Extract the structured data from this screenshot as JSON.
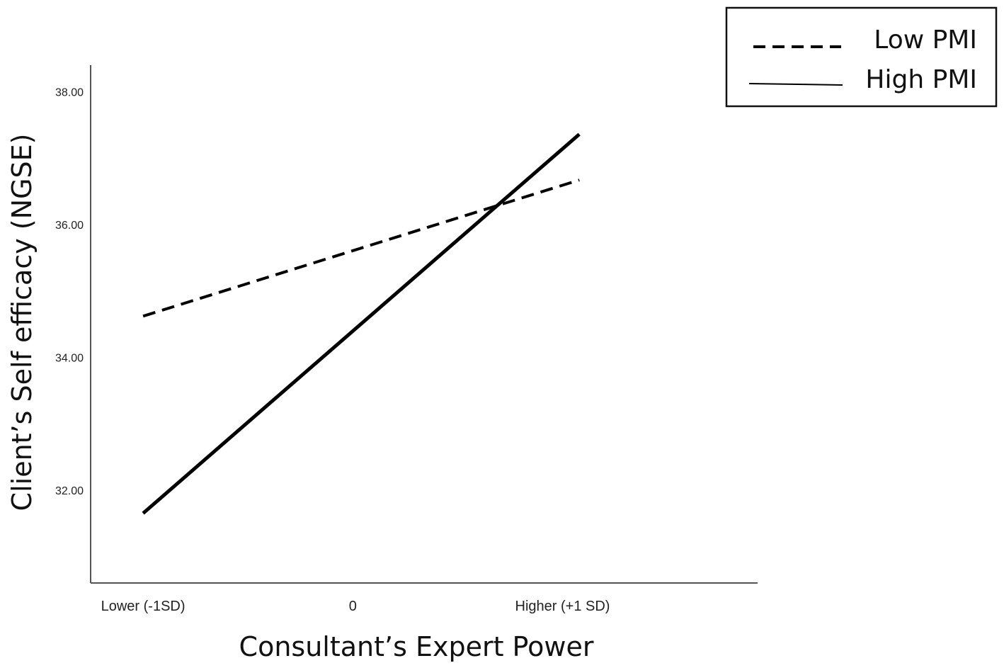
{
  "chart_data": {
    "type": "line",
    "xlabel": "Consultant’s Expert Power",
    "ylabel": "Client’s Self efficacy (NGSE)",
    "categories": [
      "Lower (-1SD)",
      "0",
      "Higher (+1 SD)"
    ],
    "x_ticks": [
      -1,
      0,
      1
    ],
    "yticks": [
      "32.00",
      "34.00",
      "36.00",
      "38.00"
    ],
    "ytick_values": [
      32,
      34,
      36,
      38
    ],
    "ylim": [
      30.6,
      38.4
    ],
    "xlim": [
      -1.25,
      1.93
    ],
    "legend_position": "top-right",
    "grid": false,
    "series": [
      {
        "name": "Low PMI",
        "style": "dashed",
        "color": "#000000",
        "x": [
          -1,
          1.08
        ],
        "values": [
          34.62,
          36.67
        ]
      },
      {
        "name": "High PMI",
        "style": "solid",
        "color": "#000000",
        "x": [
          -1,
          1.08
        ],
        "values": [
          31.65,
          37.36
        ]
      }
    ]
  }
}
